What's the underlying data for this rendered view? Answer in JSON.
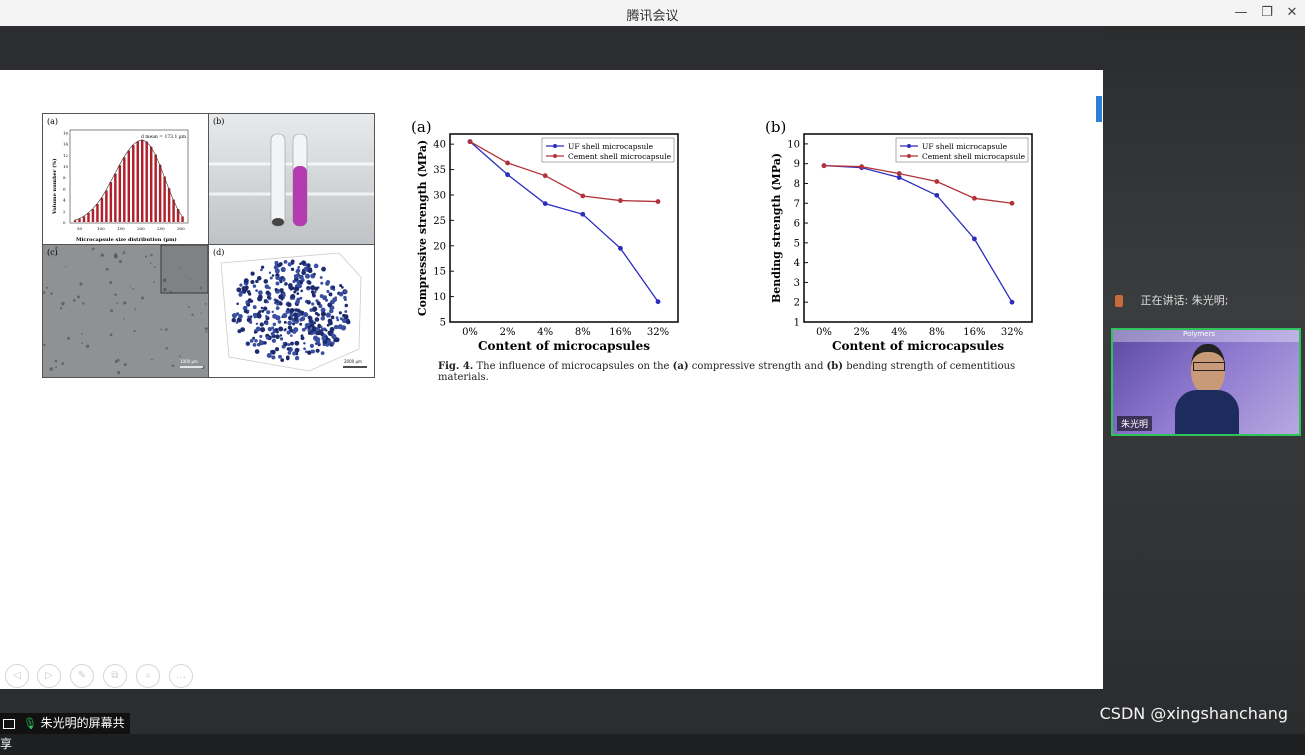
{
  "window": {
    "title": "腾讯会议",
    "minimize": "—",
    "restore": "❐",
    "close": "✕"
  },
  "slide": {
    "figA": {
      "label": "(a)",
      "annot": "d mean = 173.1 µm",
      "ylabel": "Volume number (%)",
      "xlabel": "Microcapsule size distribution (µm)",
      "xticks": [
        "50",
        "100",
        "150",
        "200",
        "250",
        "300"
      ],
      "yticks": [
        "0",
        "2",
        "4",
        "6",
        "8",
        "10",
        "12",
        "14",
        "16"
      ],
      "bars": [
        0.3,
        0.6,
        1,
        1.6,
        2.3,
        3.2,
        4.3,
        5.6,
        7.1,
        8.6,
        10.1,
        11.5,
        12.7,
        13.7,
        14.3,
        14.6,
        14.3,
        13.4,
        12,
        10.2,
        8.1,
        6,
        4,
        2.3,
        1
      ]
    },
    "figB": {
      "label": "(b)"
    },
    "figC": {
      "label": "(c)",
      "scale": "1000 µm"
    },
    "figD": {
      "label": "(d)",
      "scale": "2000 µm"
    },
    "chartA": {
      "label": "(a)"
    },
    "chartB": {
      "label": "(b)"
    },
    "caption": {
      "fig": "Fig. 4.",
      "text1": "The influence of microcapsules on the",
      "a": "(a)",
      "text2": "compressive strength and",
      "b": "(b)",
      "text3": "bending strength of cementitious materials."
    }
  },
  "chart_data": [
    {
      "type": "line",
      "categories": [
        "0%",
        "2%",
        "4%",
        "8%",
        "16%",
        "32%"
      ],
      "series": [
        {
          "name": "UF shell microcapsule",
          "values": [
            40.5,
            34,
            28.3,
            26.2,
            19.5,
            9
          ]
        },
        {
          "name": "Cement shell microcapsule",
          "values": [
            40.5,
            36.3,
            33.8,
            29.8,
            28.9,
            28.7
          ]
        }
      ],
      "xlabel": "Content of microcapsules",
      "ylabel": "Compressive strength (MPa)",
      "ylim": [
        5,
        42
      ],
      "yticks": [
        "5",
        "10",
        "15",
        "20",
        "25",
        "30",
        "35",
        "40"
      ],
      "legend": "top-right"
    },
    {
      "type": "line",
      "categories": [
        "0%",
        "2%",
        "4%",
        "8%",
        "16%",
        "32%"
      ],
      "series": [
        {
          "name": "UF shell microcapsule",
          "values": [
            8.9,
            8.8,
            8.3,
            7.4,
            5.2,
            2
          ]
        },
        {
          "name": "Cement shell microcapsule",
          "values": [
            8.9,
            8.85,
            8.5,
            8.1,
            7.25,
            7
          ]
        }
      ],
      "xlabel": "Content of microcapsules",
      "ylabel": "Bending strength (MPa)",
      "ylim": [
        1,
        10.5
      ],
      "yticks": [
        "1",
        "2",
        "3",
        "4",
        "5",
        "6",
        "7",
        "8",
        "9",
        "10"
      ],
      "legend": "top-right"
    }
  ],
  "colors": {
    "uf": "#2b2dbf",
    "cement": "#b2323b",
    "bar": "#b0202a"
  },
  "toolbar": {
    "tools": [
      "◁",
      "▷",
      "✎",
      "⧉",
      "⌕",
      "…"
    ]
  },
  "share": {
    "label": "朱光明的屏幕共享"
  },
  "sidebar": {
    "speaking": "正在讲话: 朱光明;",
    "video_name": "朱光明",
    "video_banner": "Polymers"
  },
  "watermark": "CSDN @xingshanchang"
}
